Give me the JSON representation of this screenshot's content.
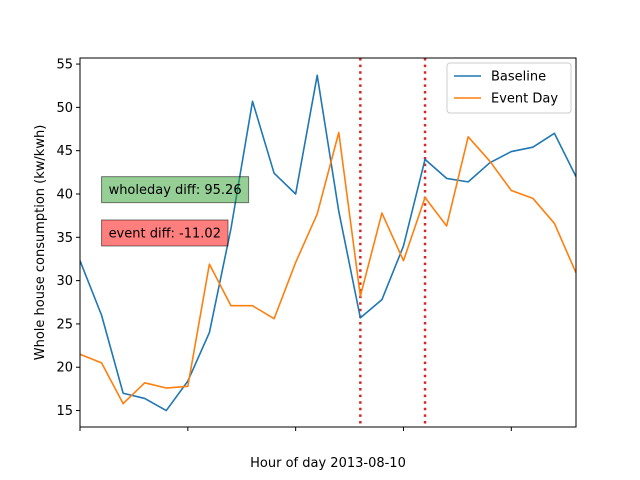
{
  "chart_data": {
    "type": "line",
    "xlabel": "Hour of day 2013-08-10",
    "ylabel": "Whole house consumption (kw/kwh)",
    "xlim": [
      0,
      23
    ],
    "ylim": [
      13.1,
      55.7
    ],
    "xticks": [
      0,
      5,
      10,
      15,
      20
    ],
    "yticks": [
      15,
      20,
      25,
      30,
      35,
      40,
      45,
      50,
      55
    ],
    "grid": false,
    "legend_position": "top-right",
    "x": [
      0,
      1,
      2,
      3,
      4,
      5,
      6,
      7,
      8,
      9,
      10,
      11,
      12,
      13,
      14,
      15,
      16,
      17,
      18,
      19,
      20,
      21,
      22,
      23
    ],
    "series": [
      {
        "name": "Baseline",
        "color": "#1f77b4",
        "values": [
          32.3,
          26.0,
          17.0,
          16.4,
          15.0,
          18.4,
          24.0,
          36.0,
          50.7,
          42.4,
          40.0,
          53.7,
          38.0,
          25.7,
          27.8,
          34.0,
          44.0,
          41.8,
          41.4,
          43.6,
          44.9,
          45.4,
          47.0,
          42.0
        ]
      },
      {
        "name": "Event Day",
        "color": "#ff7f0e",
        "values": [
          21.5,
          20.5,
          15.8,
          18.2,
          17.6,
          17.8,
          31.9,
          27.1,
          27.1,
          25.6,
          32.1,
          37.7,
          47.1,
          28.2,
          37.8,
          32.3,
          39.6,
          36.3,
          46.6,
          43.8,
          40.4,
          39.5,
          36.6,
          30.9
        ]
      }
    ],
    "vlines": [
      {
        "x": 13,
        "color": "#d62728",
        "style": "dotted"
      },
      {
        "x": 16,
        "color": "#d62728",
        "style": "dotted"
      }
    ],
    "annotations": [
      {
        "text": "wholeday diff: 95.26",
        "x": 1,
        "y": 40.5,
        "box_color": "#2ca02c"
      },
      {
        "text": "event diff: -11.02",
        "x": 1,
        "y": 35.5,
        "box_color": "#ff0000"
      }
    ]
  }
}
